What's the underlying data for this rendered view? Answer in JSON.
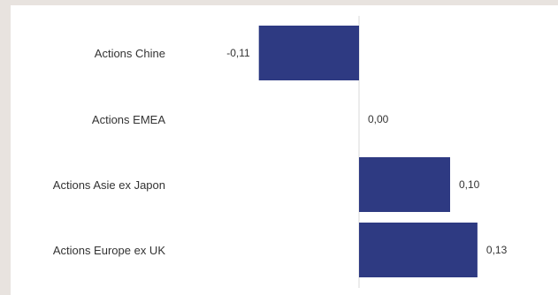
{
  "chart_data": {
    "type": "bar",
    "orientation": "horizontal",
    "categories": [
      "Actions Chine",
      "Actions EMEA",
      "Actions Asie ex Japon",
      "Actions Europe ex UK"
    ],
    "values": [
      -0.11,
      0.0,
      0.1,
      0.13
    ],
    "data_labels": [
      "-0,11",
      "0,00",
      "0,10",
      "0,13"
    ],
    "bar_color": "#2e3a82",
    "axis_line_color": "#d9d9d9",
    "grid": false,
    "legend": "none"
  },
  "colors": {
    "page_background": "#e8e3df",
    "card_background": "#ffffff",
    "text": "#333333"
  }
}
